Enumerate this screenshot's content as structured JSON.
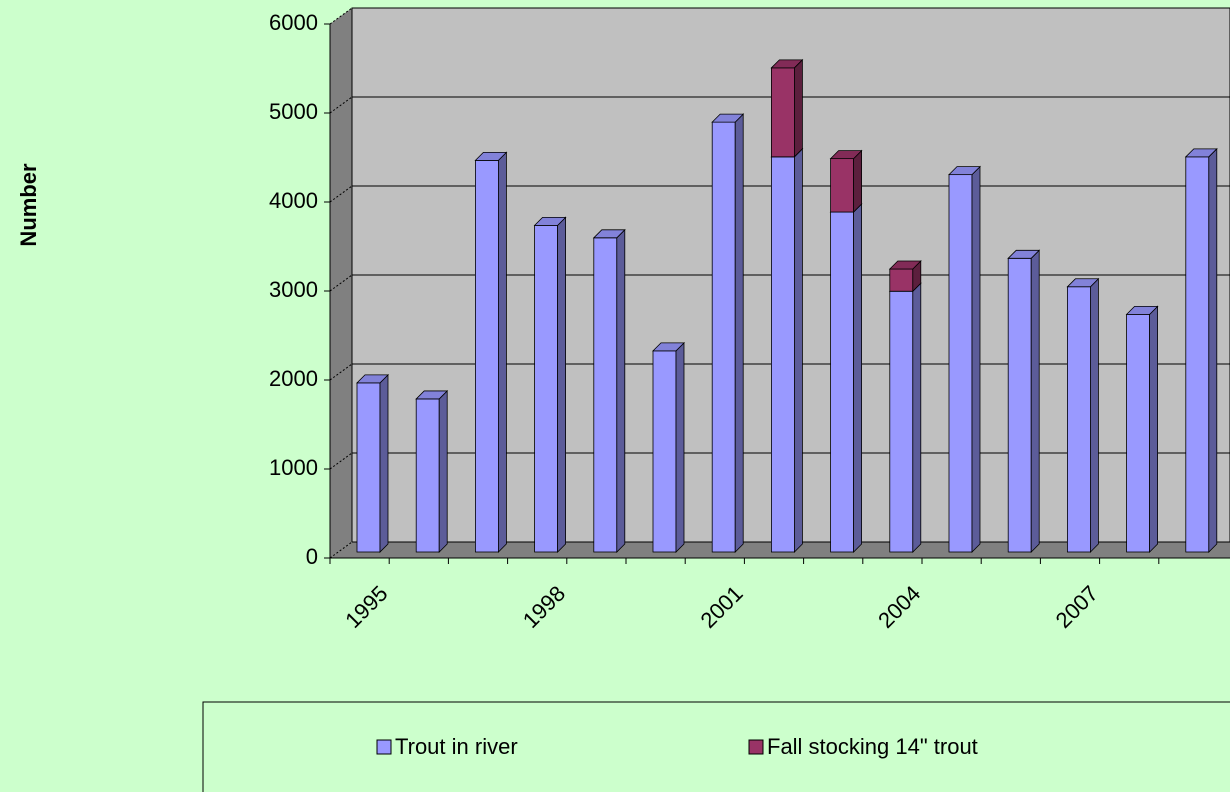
{
  "chart_data": {
    "type": "bar",
    "stacked": true,
    "y_label": "Number",
    "categories": [
      "1995",
      null,
      null,
      "1998",
      null,
      null,
      "2001",
      null,
      null,
      "2004",
      null,
      null,
      "2007",
      null,
      null
    ],
    "series": [
      {
        "name": "Trout in river",
        "color": "#9999ff",
        "values": [
          1900,
          1720,
          4400,
          3670,
          3530,
          2260,
          4830,
          4440,
          3820,
          2930,
          4240,
          3300,
          2980,
          2670,
          4440
        ]
      },
      {
        "name": "Fall stocking 14\" trout",
        "color": "#993366",
        "values": [
          null,
          null,
          null,
          null,
          null,
          null,
          null,
          1000,
          600,
          250,
          null,
          null,
          null,
          null,
          null
        ]
      }
    ],
    "ylim": [
      0,
      6000
    ],
    "yticks": [
      0,
      1000,
      2000,
      3000,
      4000,
      5000,
      6000
    ],
    "grid": true,
    "legend": "bottom"
  }
}
